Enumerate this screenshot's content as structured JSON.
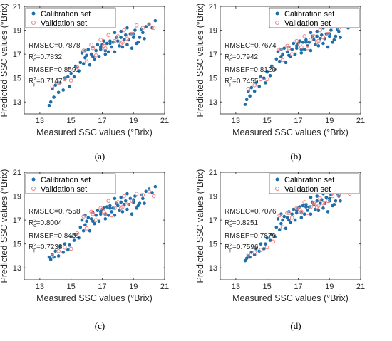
{
  "chart_data": [
    {
      "type": "scatter",
      "caption": "(a)",
      "xlabel": "Measured SSC values (°Brix)",
      "ylabel": "Predicted SSC values (°Brix)",
      "xlim": [
        12,
        21
      ],
      "ylim": [
        12,
        21
      ],
      "xticks": [
        "13",
        "15",
        "17",
        "19",
        "21"
      ],
      "yticks": [
        "13",
        "15",
        "17",
        "19",
        "21"
      ],
      "legend_position": "top-left",
      "series": [
        {
          "name": "Calibration set",
          "color": "#1f6ea8",
          "marker": "filled-circle",
          "x": [
            13.6,
            13.7,
            13.8,
            13.9,
            14.0,
            14.2,
            14.3,
            14.5,
            14.6,
            14.8,
            14.9,
            15.0,
            15.2,
            15.3,
            15.5,
            15.6,
            15.7,
            15.8,
            15.9,
            16.0,
            16.1,
            16.2,
            16.3,
            16.4,
            16.5,
            16.6,
            16.7,
            16.8,
            16.9,
            17.0,
            17.1,
            17.2,
            17.3,
            17.4,
            17.5,
            17.6,
            17.7,
            17.8,
            17.9,
            18.0,
            18.1,
            18.2,
            18.3,
            18.4,
            18.5,
            18.6,
            18.7,
            18.8,
            18.9,
            19.0,
            19.1,
            19.2,
            19.4,
            19.5,
            19.6,
            19.8,
            20.0,
            20.2,
            20.4,
            19.3,
            18.6,
            17.8,
            16.9,
            17.5,
            18.2,
            19.0,
            19.7,
            16.4,
            15.9,
            17.2
          ],
          "y": [
            12.7,
            13.0,
            14.1,
            13.4,
            14.4,
            13.8,
            14.6,
            14.0,
            15.0,
            15.1,
            14.3,
            15.4,
            15.1,
            16.0,
            15.6,
            16.3,
            17.1,
            16.2,
            16.7,
            16.9,
            17.4,
            16.1,
            17.0,
            17.6,
            16.6,
            17.3,
            17.8,
            16.8,
            17.4,
            17.8,
            18.1,
            17.3,
            17.9,
            17.2,
            18.1,
            17.6,
            18.0,
            17.2,
            18.4,
            18.1,
            17.7,
            18.4,
            17.6,
            18.2,
            18.6,
            17.8,
            18.2,
            18.7,
            17.5,
            18.4,
            19.0,
            17.9,
            18.4,
            19.1,
            18.8,
            19.3,
            19.5,
            19.2,
            19.8,
            18.0,
            19.2,
            18.8,
            17.6,
            17.9,
            18.9,
            18.7,
            18.3,
            16.8,
            17.3,
            17.0
          ]
        },
        {
          "name": "Validation set",
          "color": "#f08080",
          "marker": "open-circle",
          "x": [
            13.8,
            14.2,
            14.6,
            15.0,
            15.4,
            15.8,
            16.0,
            16.3,
            16.6,
            16.9,
            17.2,
            17.4,
            17.6,
            17.8,
            18.0,
            18.2,
            18.4,
            18.6,
            18.9,
            19.2,
            19.6,
            20.0,
            20.3,
            17.1,
            16.4,
            18.3
          ],
          "y": [
            14.3,
            14.6,
            14.9,
            14.8,
            15.9,
            17.3,
            16.4,
            17.8,
            16.9,
            18.2,
            17.5,
            18.6,
            17.4,
            18.1,
            18.5,
            17.9,
            19.0,
            18.3,
            18.7,
            19.4,
            19.2,
            19.5,
            19.2,
            17.7,
            17.5,
            18.0
          ]
        }
      ],
      "annotations": {
        "rmsec": "RMSEC=0.7878",
        "rc2": "=0.7832",
        "rmsep": "RMSEP=0.8591",
        "rp2": "=0.7147"
      }
    },
    {
      "type": "scatter",
      "caption": "(b)",
      "xlabel": "Measured SSC values (°Brix)",
      "ylabel": "Predicted SSC values (°Brix)",
      "xlim": [
        12,
        21
      ],
      "ylim": [
        12,
        21
      ],
      "xticks": [
        "13",
        "15",
        "17",
        "19",
        "21"
      ],
      "yticks": [
        "13",
        "15",
        "17",
        "19",
        "21"
      ],
      "legend_position": "top-right",
      "series": [
        {
          "name": "Calibration set",
          "color": "#1f6ea8",
          "marker": "filled-circle",
          "x": [
            13.6,
            13.7,
            13.8,
            13.9,
            14.0,
            14.2,
            14.3,
            14.5,
            14.6,
            14.8,
            14.9,
            15.0,
            15.2,
            15.3,
            15.5,
            15.6,
            15.7,
            15.8,
            15.9,
            16.0,
            16.1,
            16.2,
            16.3,
            16.4,
            16.5,
            16.6,
            16.7,
            16.8,
            16.9,
            17.0,
            17.1,
            17.2,
            17.3,
            17.4,
            17.5,
            17.6,
            17.7,
            17.8,
            17.9,
            18.0,
            18.1,
            18.2,
            18.3,
            18.4,
            18.5,
            18.6,
            18.7,
            18.8,
            18.9,
            19.0,
            19.1,
            19.2,
            19.4,
            19.5,
            19.6,
            19.8,
            20.0,
            20.2,
            20.4,
            19.3,
            18.6,
            17.8,
            16.9,
            17.5,
            18.2,
            19.0,
            19.7,
            16.4,
            15.9,
            17.2
          ],
          "y": [
            12.8,
            13.2,
            13.9,
            13.5,
            14.2,
            13.9,
            14.6,
            14.3,
            15.1,
            15.0,
            14.6,
            15.5,
            15.2,
            16.0,
            15.7,
            16.6,
            17.2,
            16.4,
            16.8,
            17.0,
            17.5,
            16.3,
            17.2,
            17.6,
            16.8,
            17.4,
            17.9,
            17.0,
            17.5,
            17.9,
            18.1,
            17.4,
            18.0,
            17.4,
            18.2,
            17.7,
            18.0,
            17.3,
            18.5,
            18.2,
            17.8,
            18.5,
            17.7,
            18.3,
            18.6,
            17.9,
            18.3,
            18.7,
            17.6,
            18.5,
            19.0,
            18.0,
            18.5,
            19.1,
            18.9,
            19.3,
            19.5,
            19.2,
            19.8,
            18.2,
            19.2,
            18.8,
            17.7,
            18.0,
            18.9,
            18.7,
            18.4,
            16.9,
            17.4,
            17.1
          ]
        },
        {
          "name": "Validation set",
          "color": "#f08080",
          "marker": "open-circle",
          "x": [
            13.8,
            14.2,
            14.6,
            15.0,
            15.4,
            15.8,
            16.0,
            16.3,
            16.6,
            16.9,
            17.2,
            17.4,
            17.6,
            17.8,
            18.0,
            18.2,
            18.4,
            18.6,
            18.9,
            19.2,
            19.6,
            20.0,
            20.3,
            17.1,
            16.4,
            18.3
          ],
          "y": [
            14.1,
            14.4,
            14.9,
            14.9,
            15.8,
            17.4,
            16.5,
            17.7,
            17.0,
            18.1,
            17.6,
            18.5,
            17.5,
            18.2,
            18.5,
            18.0,
            19.0,
            18.4,
            18.7,
            19.3,
            19.2,
            19.5,
            19.3,
            17.8,
            17.5,
            18.1
          ]
        }
      ],
      "annotations": {
        "rmsec": "RMSEC=0.7674",
        "rc2": "=0.7942",
        "rmsep": "RMSEP=0.8120",
        "rp2": "=0.7455"
      }
    },
    {
      "type": "scatter",
      "caption": "(c)",
      "xlabel": "Measured SSC values (°Brix)",
      "ylabel": "Predicted SSC values (°Brix)",
      "xlim": [
        12,
        21
      ],
      "ylim": [
        12,
        21
      ],
      "xticks": [
        "13",
        "15",
        "17",
        "19",
        "21"
      ],
      "yticks": [
        "13",
        "15",
        "17",
        "19",
        "21"
      ],
      "legend_position": "top-left",
      "series": [
        {
          "name": "Calibration set",
          "color": "#1f6ea8",
          "marker": "filled-circle",
          "x": [
            13.6,
            13.7,
            13.8,
            13.9,
            14.0,
            14.2,
            14.3,
            14.5,
            14.6,
            14.8,
            14.9,
            15.0,
            15.2,
            15.3,
            15.5,
            15.6,
            15.7,
            15.8,
            15.9,
            16.0,
            16.1,
            16.2,
            16.3,
            16.4,
            16.5,
            16.6,
            16.7,
            16.8,
            16.9,
            17.0,
            17.1,
            17.2,
            17.3,
            17.4,
            17.5,
            17.6,
            17.7,
            17.8,
            17.9,
            18.0,
            18.1,
            18.2,
            18.3,
            18.4,
            18.5,
            18.6,
            18.7,
            18.8,
            18.9,
            19.0,
            19.1,
            19.2,
            19.4,
            19.5,
            19.6,
            19.8,
            20.0,
            20.2,
            20.4,
            19.3,
            18.6,
            17.8,
            16.9,
            17.5,
            18.2,
            19.0,
            19.7,
            16.4,
            15.9,
            17.2
          ],
          "y": [
            13.9,
            13.7,
            14.1,
            13.9,
            14.4,
            14.0,
            14.8,
            14.3,
            15.0,
            14.5,
            14.9,
            15.6,
            15.3,
            15.8,
            15.5,
            16.4,
            17.0,
            16.1,
            16.6,
            16.9,
            17.2,
            16.1,
            17.1,
            17.6,
            16.7,
            17.4,
            17.8,
            16.9,
            17.5,
            17.9,
            18.0,
            17.5,
            18.1,
            17.4,
            18.2,
            17.7,
            18.0,
            17.4,
            18.4,
            18.2,
            17.8,
            18.5,
            17.7,
            18.3,
            18.6,
            17.9,
            18.3,
            18.8,
            17.5,
            18.5,
            19.0,
            18.0,
            18.4,
            19.1,
            18.8,
            19.4,
            19.6,
            19.3,
            19.8,
            18.2,
            19.2,
            18.8,
            17.7,
            18.0,
            18.9,
            18.7,
            18.4,
            16.9,
            17.4,
            17.1
          ]
        },
        {
          "name": "Validation set",
          "color": "#f08080",
          "marker": "open-circle",
          "x": [
            13.8,
            14.2,
            14.6,
            15.0,
            15.4,
            15.8,
            16.0,
            16.3,
            16.6,
            16.9,
            17.2,
            17.4,
            17.6,
            17.8,
            18.0,
            18.2,
            18.4,
            18.6,
            18.9,
            19.2,
            19.6,
            20.0,
            20.3,
            17.1,
            16.4,
            18.3
          ],
          "y": [
            14.0,
            14.4,
            14.7,
            14.6,
            15.9,
            17.3,
            16.3,
            17.7,
            17.0,
            18.0,
            17.5,
            18.6,
            17.4,
            18.0,
            18.5,
            18.0,
            19.0,
            18.3,
            18.6,
            19.2,
            19.1,
            19.4,
            19.0,
            17.7,
            17.5,
            18.1
          ]
        }
      ],
      "annotations": {
        "rmsec": "RMSEC=0.7558",
        "rc2": "=0.8004",
        "rmsep": "RMSEP=0.8451",
        "rp2": "=0.7238"
      }
    },
    {
      "type": "scatter",
      "caption": "(d)",
      "xlabel": "Measured SSC values (°Brix)",
      "ylabel": "Predicted SSC values (°Brix)",
      "xlim": [
        12,
        21
      ],
      "ylim": [
        12,
        21
      ],
      "xticks": [
        "13",
        "15",
        "17",
        "19",
        "21"
      ],
      "yticks": [
        "13",
        "15",
        "17",
        "19",
        "21"
      ],
      "legend_position": "top-right",
      "series": [
        {
          "name": "Calibration set",
          "color": "#1f6ea8",
          "marker": "filled-circle",
          "x": [
            13.6,
            13.7,
            13.8,
            13.9,
            14.0,
            14.2,
            14.3,
            14.5,
            14.6,
            14.8,
            14.9,
            15.0,
            15.2,
            15.3,
            15.5,
            15.6,
            15.7,
            15.8,
            15.9,
            16.0,
            16.1,
            16.2,
            16.3,
            16.4,
            16.5,
            16.6,
            16.7,
            16.8,
            16.9,
            17.0,
            17.1,
            17.2,
            17.3,
            17.4,
            17.5,
            17.6,
            17.7,
            17.8,
            17.9,
            18.0,
            18.1,
            18.2,
            18.3,
            18.4,
            18.5,
            18.6,
            18.7,
            18.8,
            18.9,
            19.0,
            19.1,
            19.2,
            19.4,
            19.5,
            19.6,
            19.8,
            20.0,
            20.2,
            20.4,
            19.3,
            18.6,
            17.8,
            16.9,
            17.5,
            18.2,
            19.0,
            19.7,
            16.4,
            15.9,
            17.2
          ],
          "y": [
            13.6,
            13.8,
            14.0,
            13.9,
            14.3,
            14.1,
            14.6,
            14.4,
            15.0,
            14.6,
            15.0,
            15.5,
            15.3,
            15.8,
            15.6,
            16.4,
            17.1,
            16.2,
            16.7,
            17.0,
            17.3,
            16.3,
            17.2,
            17.7,
            16.8,
            17.5,
            17.9,
            17.0,
            17.6,
            18.0,
            18.1,
            17.6,
            18.2,
            17.5,
            18.3,
            17.8,
            18.1,
            17.5,
            18.5,
            18.3,
            17.9,
            18.6,
            17.8,
            18.4,
            18.7,
            18.0,
            18.4,
            18.9,
            17.7,
            18.6,
            19.1,
            18.2,
            18.6,
            19.2,
            19.0,
            19.4,
            19.6,
            19.4,
            19.8,
            18.3,
            19.2,
            18.9,
            17.8,
            18.1,
            19.0,
            18.8,
            18.6,
            17.0,
            17.5,
            17.2
          ]
        },
        {
          "name": "Validation set",
          "color": "#f08080",
          "marker": "open-circle",
          "x": [
            13.8,
            14.2,
            14.6,
            15.0,
            15.4,
            15.8,
            16.0,
            16.3,
            16.6,
            16.9,
            17.2,
            17.4,
            17.6,
            17.8,
            18.0,
            18.2,
            18.4,
            18.6,
            18.9,
            19.2,
            19.6,
            20.0,
            20.3,
            17.1,
            16.4,
            18.3
          ],
          "y": [
            14.1,
            14.3,
            14.5,
            14.7,
            15.2,
            17.4,
            16.4,
            17.6,
            17.2,
            18.0,
            17.7,
            18.5,
            17.6,
            18.1,
            18.4,
            18.1,
            18.8,
            18.4,
            18.6,
            19.0,
            19.1,
            19.5,
            19.2,
            17.9,
            17.6,
            18.2
          ]
        }
      ],
      "annotations": {
        "rmsec": "RMSEC=0.7076",
        "rc2": "=0.8251",
        "rmsep": "RMSEP=0.7879",
        "rp2": "=0.7596"
      }
    }
  ]
}
